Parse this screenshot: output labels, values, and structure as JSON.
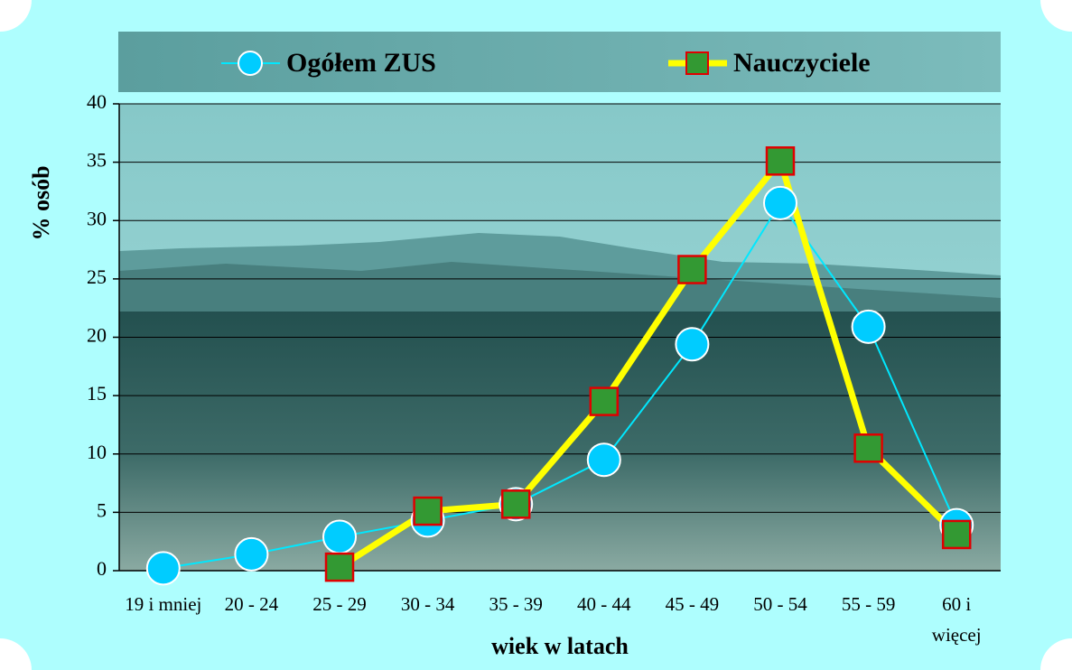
{
  "chart_data": {
    "type": "line",
    "x_label": "wiek w latach",
    "y_label": "% osób",
    "categories": [
      "19 i mniej",
      "20 - 24",
      "25 - 29",
      "30 - 34",
      "35 - 39",
      "40 - 44",
      "45 - 49",
      "50 - 54",
      "55 - 59",
      "60 i więcej"
    ],
    "series": [
      {
        "name": "Ogółem ZUS",
        "color": "#00e8ff",
        "marker": "circle",
        "marker_color": "#00ccff",
        "marker_edge": "#ffffff",
        "line_width": 2,
        "values": [
          0.2,
          1.4,
          2.9,
          4.3,
          5.7,
          9.5,
          19.4,
          31.5,
          20.9,
          3.9
        ]
      },
      {
        "name": "Nauczyciele",
        "color": "#ffff00",
        "marker": "square",
        "marker_color": "#339933",
        "marker_edge": "#e00000",
        "line_width": 7,
        "values": [
          null,
          null,
          0.3,
          5.1,
          5.7,
          14.5,
          25.8,
          35.1,
          10.5,
          3.1
        ]
      }
    ],
    "ylim": [
      0,
      40
    ],
    "yticks": [
      0,
      5,
      10,
      15,
      20,
      25,
      30,
      35,
      40
    ],
    "grid": true,
    "legend": "top"
  }
}
